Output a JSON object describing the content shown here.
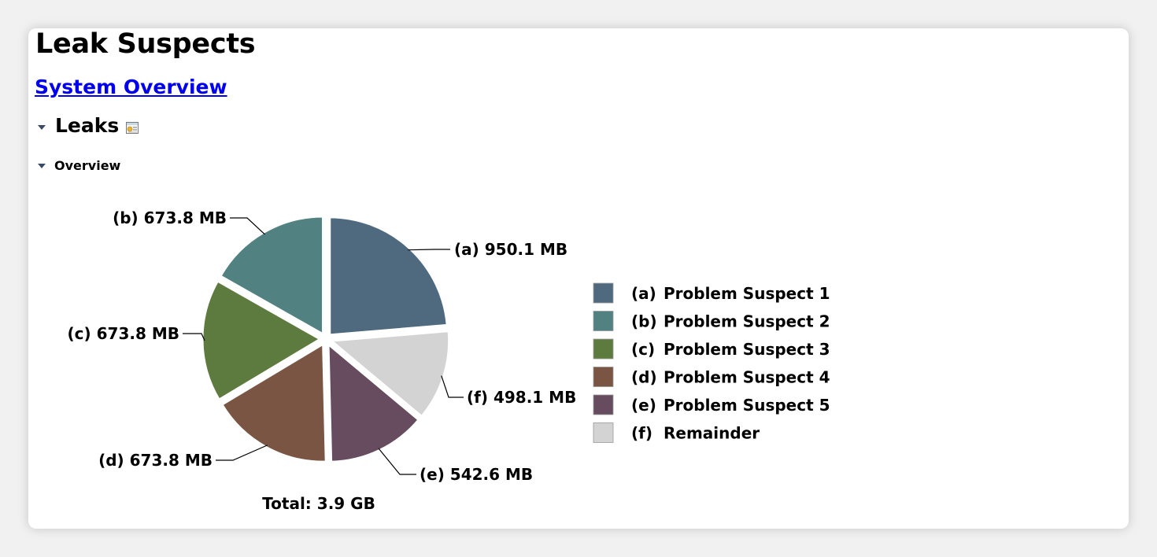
{
  "page_title": "Leak Suspects",
  "overview_link": "System Overview",
  "leaks_section": {
    "title": "Leaks",
    "icon": "report-details-icon"
  },
  "overview_section": {
    "title": "Overview"
  },
  "chart_data": {
    "type": "pie",
    "total_label": "Total: 3.9 GB",
    "slices": [
      {
        "key": "(a)",
        "label": "950.1 MB",
        "value": 950.1,
        "legend": "Problem Suspect 1",
        "color": "#4f6a7e"
      },
      {
        "key": "(b)",
        "label": "673.8 MB",
        "value": 673.8,
        "legend": "Problem Suspect 2",
        "color": "#528181"
      },
      {
        "key": "(c)",
        "label": "673.8 MB",
        "value": 673.8,
        "legend": "Problem Suspect 3",
        "color": "#5d7b3f"
      },
      {
        "key": "(d)",
        "label": "673.8 MB",
        "value": 673.8,
        "legend": "Problem Suspect 4",
        "color": "#7a5544"
      },
      {
        "key": "(e)",
        "label": "542.6 MB",
        "value": 542.6,
        "legend": "Problem Suspect 5",
        "color": "#674c60"
      },
      {
        "key": "(f)",
        "label": "498.1 MB",
        "value": 498.1,
        "legend": "Remainder",
        "color": "#d3d3d3"
      }
    ]
  }
}
